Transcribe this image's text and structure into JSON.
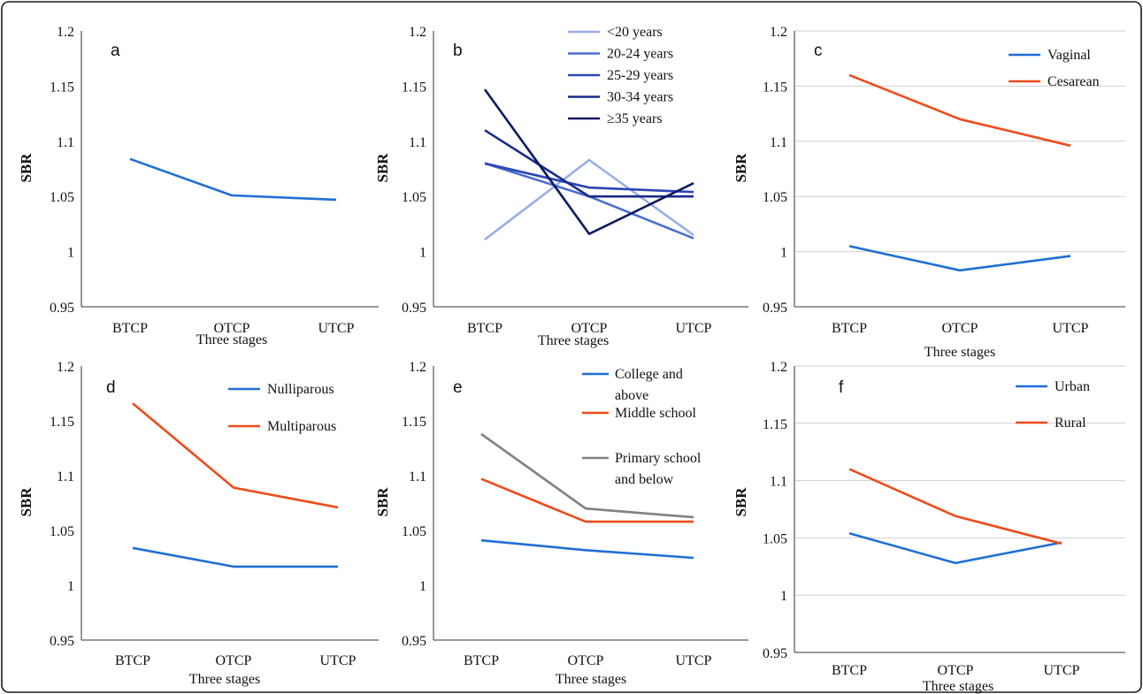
{
  "chart_data": [
    {
      "panel": "a",
      "type": "line",
      "categories": [
        "BTCP",
        "OTCP",
        "UTCP"
      ],
      "xlabel": "Three stages",
      "ylabel": "SBR",
      "ylim": [
        0.95,
        1.2
      ],
      "yticks": [
        "0.95",
        "1",
        "1.05",
        "1.1",
        "1.15",
        "1.2"
      ],
      "grid": false,
      "legend": "none",
      "series": [
        {
          "values": [
            1.084,
            1.051,
            1.047
          ],
          "color": "#1f6fd6"
        }
      ]
    },
    {
      "panel": "b",
      "type": "line",
      "categories": [
        "BTCP",
        "OTCP",
        "UTCP"
      ],
      "xlabel": "Three stages",
      "ylabel": "SBR",
      "ylim": [
        0.95,
        1.2
      ],
      "yticks": [
        "0.95",
        "1",
        "1.05",
        "1.1",
        "1.15",
        "1.2"
      ],
      "grid": false,
      "legend": "top-right",
      "series": [
        {
          "name": "<20 years",
          "values": [
            1.011,
            1.083,
            1.015
          ],
          "color": "#98aee6"
        },
        {
          "name": "20-24 years",
          "values": [
            1.08,
            1.05,
            1.012
          ],
          "color": "#4a6fd0"
        },
        {
          "name": "25-29 years",
          "values": [
            1.08,
            1.058,
            1.054
          ],
          "color": "#2c45b8"
        },
        {
          "name": "30-34 years",
          "values": [
            1.11,
            1.05,
            1.05
          ],
          "color": "#1a2a8c"
        },
        {
          "name": "≥35 years",
          "values": [
            1.147,
            1.016,
            1.062
          ],
          "color": "#0d1a62"
        }
      ]
    },
    {
      "panel": "c",
      "type": "line",
      "categories": [
        "BTCP",
        "OTCP",
        "UTCP"
      ],
      "xlabel": "Three stages",
      "ylabel": "SBR",
      "ylim": [
        0.95,
        1.2
      ],
      "yticks": [
        "0.95",
        "1",
        "1.05",
        "1.1",
        "1.15",
        "1.2"
      ],
      "grid": true,
      "legend": "top-right",
      "series": [
        {
          "name": "Vaginal",
          "values": [
            1.005,
            0.983,
            0.996
          ],
          "color": "#1f6fd6"
        },
        {
          "name": "Cesarean",
          "values": [
            1.16,
            1.12,
            1.096
          ],
          "color": "#f04a1a"
        }
      ]
    },
    {
      "panel": "d",
      "type": "line",
      "categories": [
        "BTCP",
        "OTCP",
        "UTCP"
      ],
      "xlabel": "Three stages",
      "ylabel": "SBR",
      "ylim": [
        0.95,
        1.2
      ],
      "yticks": [
        "0.95",
        "1",
        "1.05",
        "1.1",
        "1.15",
        "1.2"
      ],
      "grid": false,
      "legend": "top-right",
      "series": [
        {
          "name": "Nulliparous",
          "values": [
            1.034,
            1.017,
            1.017
          ],
          "color": "#1f6fd6"
        },
        {
          "name": "Multiparous",
          "values": [
            1.166,
            1.089,
            1.071
          ],
          "color": "#f04a1a"
        }
      ]
    },
    {
      "panel": "e",
      "type": "line",
      "categories": [
        "BTCP",
        "OTCP",
        "UTCP"
      ],
      "xlabel": "Three stages",
      "ylabel": "SBR",
      "ylim": [
        0.95,
        1.2
      ],
      "yticks": [
        "0.95",
        "1",
        "1.05",
        "1.1",
        "1.15",
        "1.2"
      ],
      "grid": false,
      "legend": "top-right",
      "series": [
        {
          "name": "College and above",
          "values": [
            1.041,
            1.032,
            1.025
          ],
          "color": "#1f6fd6"
        },
        {
          "name": "Middle school",
          "values": [
            1.097,
            1.058,
            1.058
          ],
          "color": "#f04a1a"
        },
        {
          "name": "Primary school and below",
          "values": [
            1.138,
            1.07,
            1.062
          ],
          "color": "#808080"
        }
      ]
    },
    {
      "panel": "f",
      "type": "line",
      "categories": [
        "BTCP",
        "OTCP",
        "UTCP"
      ],
      "xlabel": "Three stages",
      "ylabel": "SBR",
      "ylim": [
        0.95,
        1.2
      ],
      "yticks": [
        "0.95",
        "1",
        "1.05",
        "1.1",
        "1.15",
        "1.2"
      ],
      "grid": true,
      "legend": "top-right",
      "series": [
        {
          "name": "Urban",
          "values": [
            1.054,
            1.028,
            1.046
          ],
          "color": "#1f6fd6"
        },
        {
          "name": "Rural",
          "values": [
            1.11,
            1.069,
            1.045
          ],
          "color": "#f04a1a"
        }
      ]
    }
  ]
}
